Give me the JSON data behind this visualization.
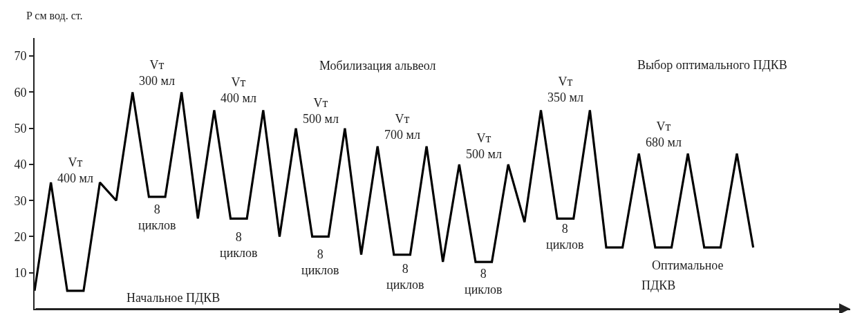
{
  "chart_data": {
    "type": "line",
    "ylabel": "P см вод. ст.",
    "color": "#000000",
    "marker": "none",
    "line_style": "solid",
    "tick_labels": "y",
    "ylim": [
      0,
      75
    ],
    "yticks": [
      10,
      20,
      30,
      40,
      50,
      60,
      70
    ],
    "categories": [
      null,
      null,
      null,
      null,
      null,
      null,
      null,
      null,
      null,
      null,
      null,
      null,
      null,
      null,
      null,
      null,
      null,
      null,
      null,
      null,
      null,
      null,
      null,
      null,
      null,
      null,
      null,
      null,
      null,
      null,
      null,
      null,
      null,
      null,
      null,
      null,
      null,
      null,
      null,
      null,
      null,
      null,
      null,
      null,
      null
    ],
    "values": [
      5,
      35,
      5,
      5,
      35,
      30,
      60,
      31,
      31,
      60,
      25,
      55,
      25,
      25,
      55,
      20,
      50,
      20,
      20,
      50,
      15,
      45,
      15,
      15,
      45,
      13,
      40,
      13,
      13,
      40,
      24,
      55,
      25,
      25,
      55,
      17,
      17,
      43,
      17,
      17,
      43,
      17,
      17,
      43,
      17
    ],
    "annotations": [
      "Vт\n400 мл",
      "Vт\n300 мл",
      "8\nциклов",
      "Vт\n400 мл",
      "8\nциклов",
      "Начальное ПДКВ",
      "Мобилизация альвеол",
      "Vт\n500 мл",
      "8\nциклов",
      "Vт\n700 мл",
      "8\nциклов",
      "Vт\n500 мл",
      "8\nциклов",
      "Vт\n350 мл",
      "8\nциклов",
      "Выбор оптимального ПДКВ",
      "Vт\n680 мл",
      "Оптимальное",
      "ПДКВ"
    ]
  }
}
